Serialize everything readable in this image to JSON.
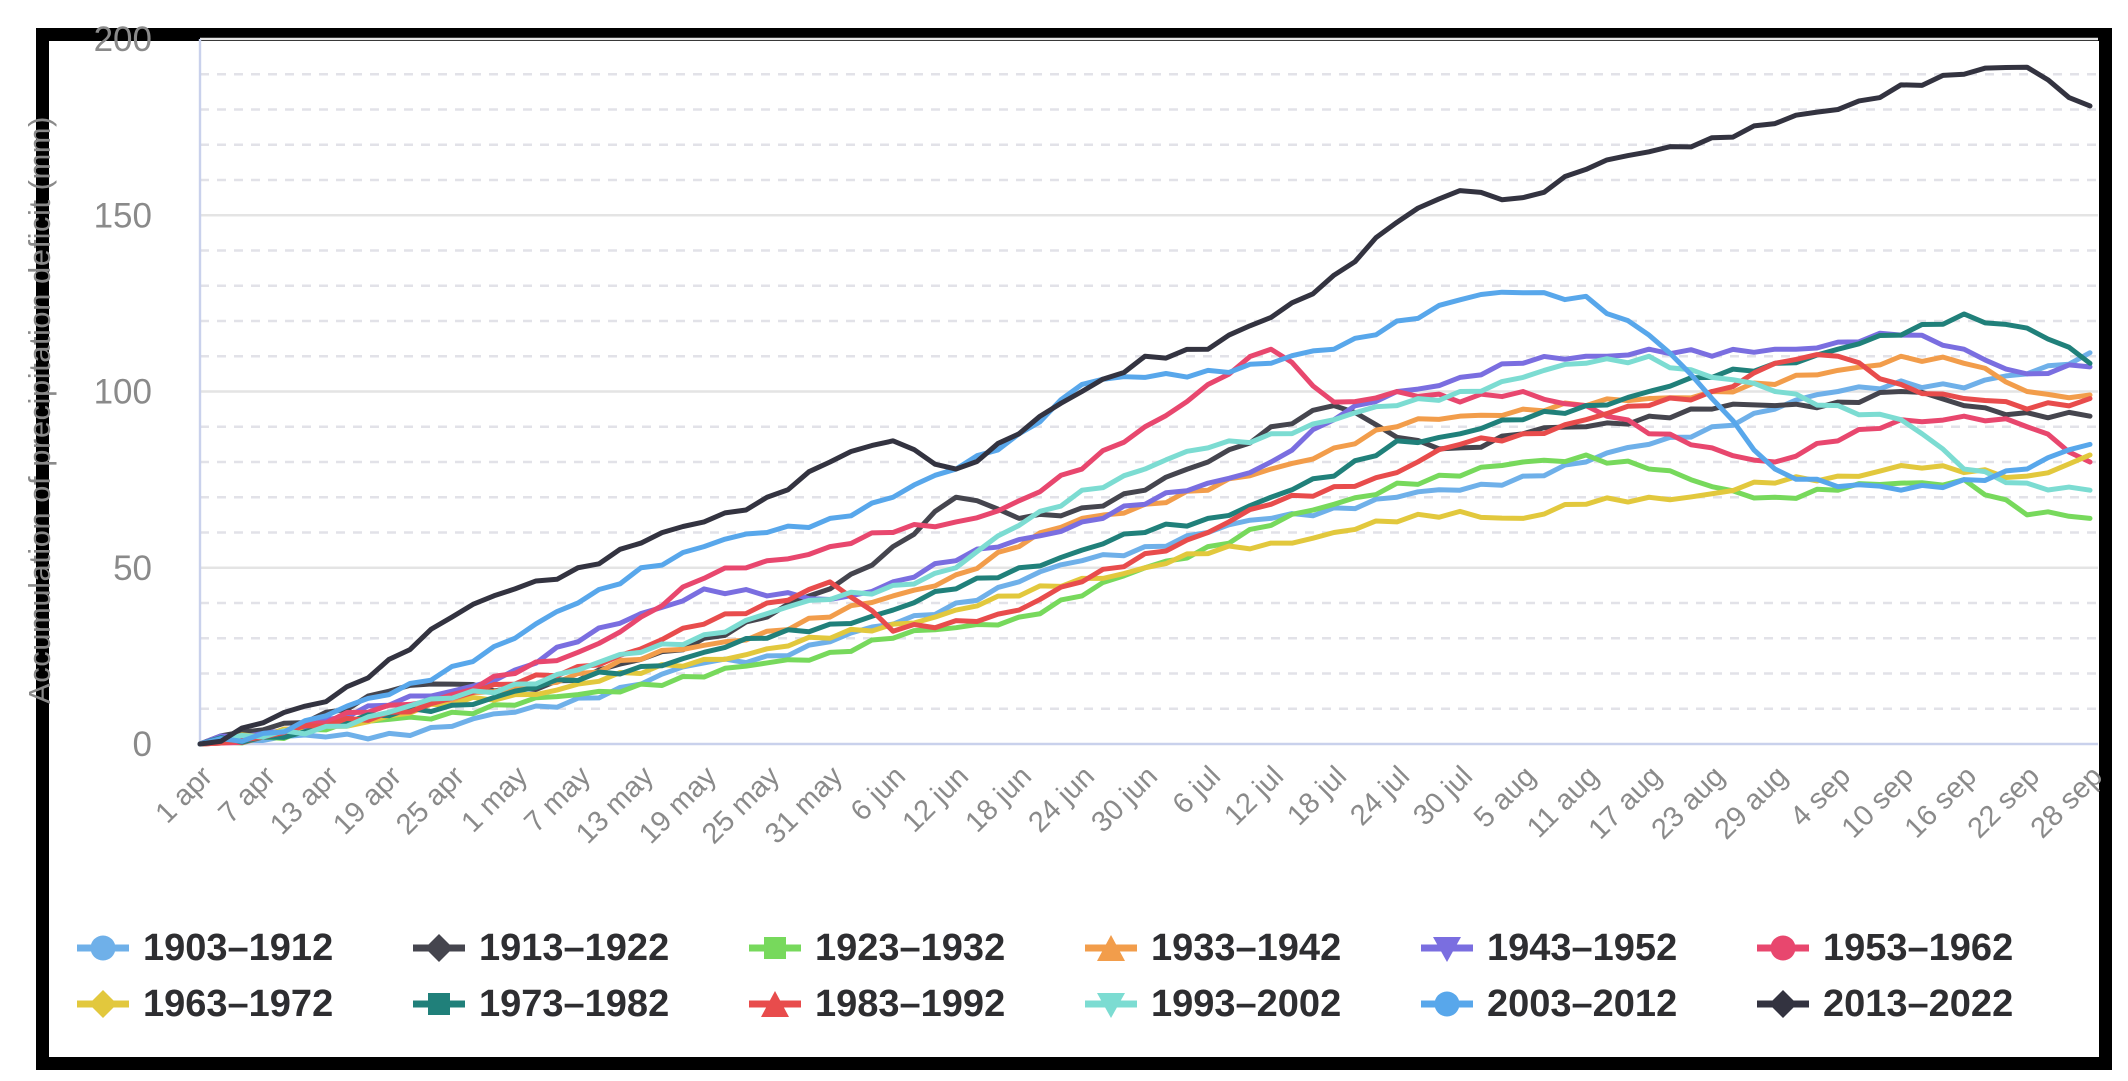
{
  "figure": {
    "background": "#ffffff",
    "border_color": "#000000"
  },
  "axis_style": {
    "tick_label_color": "#8a8a8a",
    "axis_line_color": "#c9d1ec",
    "grid_major_color": "#e4e4e4",
    "grid_minor_color": "#e2e2e8",
    "legend_text_color": "#2e2e31"
  },
  "chart_data": {
    "type": "line",
    "title": "",
    "xlabel": "",
    "ylabel": "Accumulation of precipitation deficit (mm)",
    "ylim": [
      0,
      200
    ],
    "y_ticks": [
      0,
      50,
      100,
      150,
      200
    ],
    "y_minor_step": 10,
    "grid": "major solid, minor dashed",
    "legend_position": "bottom",
    "x": [
      "1 apr",
      "7 apr",
      "13 apr",
      "19 apr",
      "25 apr",
      "1 may",
      "7 may",
      "13 may",
      "19 may",
      "25 may",
      "31 may",
      "6 jun",
      "12 jun",
      "18 jun",
      "24 jun",
      "30 jun",
      "6 jul",
      "12 jul",
      "18 jul",
      "24 jul",
      "30 jul",
      "5 aug",
      "11 aug",
      "17 aug",
      "23 aug",
      "29 aug",
      "4 sep",
      "10 sep",
      "16 sep",
      "22 sep",
      "28 sep"
    ],
    "series": [
      {
        "name": "1903–1912",
        "color": "#6fb0e9",
        "marker": "circle",
        "values": [
          0,
          1,
          2,
          3,
          5,
          9,
          13,
          17,
          23,
          25,
          29,
          34,
          40,
          46,
          52,
          56,
          60,
          64,
          67,
          70,
          72,
          76,
          80,
          85,
          90,
          95,
          100,
          103,
          101,
          105,
          111
        ]
      },
      {
        "name": "1913–1922",
        "color": "#45454e",
        "marker": "diamond",
        "values": [
          0,
          4,
          9,
          15,
          17,
          16,
          18,
          24,
          30,
          36,
          44,
          56,
          70,
          64,
          67,
          72,
          80,
          90,
          96,
          87,
          84,
          88,
          90,
          93,
          95,
          96,
          97,
          100,
          96,
          94,
          93
        ]
      },
      {
        "name": "1923–1932",
        "color": "#77d95c",
        "marker": "square",
        "values": [
          0,
          2,
          4,
          7,
          9,
          11,
          14,
          17,
          19,
          23,
          26,
          30,
          33,
          36,
          42,
          50,
          56,
          62,
          68,
          74,
          76,
          80,
          82,
          78,
          73,
          70,
          72,
          74,
          75,
          65,
          64
        ]
      },
      {
        "name": "1933–1942",
        "color": "#f29d4b",
        "marker": "triangle-up",
        "values": [
          0,
          2,
          5,
          9,
          12,
          16,
          20,
          24,
          28,
          32,
          36,
          42,
          48,
          56,
          64,
          68,
          72,
          78,
          84,
          90,
          93,
          95,
          96,
          98,
          100,
          102,
          106,
          110,
          108,
          100,
          99
        ]
      },
      {
        "name": "1943–1952",
        "color": "#7a6ee0",
        "marker": "triangle-down",
        "values": [
          0,
          3,
          7,
          11,
          15,
          21,
          29,
          37,
          44,
          42,
          41,
          46,
          52,
          58,
          63,
          68,
          74,
          80,
          92,
          100,
          104,
          108,
          110,
          112,
          110,
          112,
          114,
          116,
          112,
          105,
          107
        ]
      },
      {
        "name": "1953–1962",
        "color": "#e8476e",
        "marker": "circle",
        "values": [
          0,
          2,
          6,
          11,
          14,
          20,
          26,
          36,
          47,
          52,
          56,
          60,
          63,
          69,
          78,
          90,
          102,
          112,
          97,
          100,
          97,
          100,
          96,
          88,
          84,
          80,
          86,
          92,
          93,
          90,
          80
        ]
      },
      {
        "name": "1963–1972",
        "color": "#e2c83d",
        "marker": "diamond",
        "values": [
          0,
          2,
          5,
          8,
          11,
          14,
          17,
          20,
          24,
          27,
          30,
          34,
          38,
          42,
          47,
          50,
          54,
          57,
          60,
          63,
          66,
          64,
          68,
          70,
          71,
          74,
          76,
          79,
          77,
          76,
          82
        ]
      },
      {
        "name": "1973–1982",
        "color": "#20807a",
        "marker": "square",
        "values": [
          0,
          2,
          5,
          8,
          11,
          15,
          18,
          22,
          26,
          30,
          34,
          38,
          44,
          50,
          55,
          60,
          64,
          70,
          76,
          86,
          88,
          92,
          96,
          100,
          104,
          108,
          112,
          116,
          122,
          118,
          108
        ]
      },
      {
        "name": "1983–1992",
        "color": "#e84c4c",
        "marker": "triangle-up",
        "values": [
          0,
          2,
          5,
          9,
          13,
          17,
          22,
          27,
          34,
          40,
          46,
          32,
          35,
          38,
          46,
          54,
          60,
          68,
          73,
          77,
          85,
          88,
          92,
          96,
          100,
          108,
          110,
          102,
          98,
          95,
          98
        ]
      },
      {
        "name": "1993–2002",
        "color": "#7cdcd2",
        "marker": "triangle-down",
        "values": [
          0,
          2,
          5,
          9,
          13,
          17,
          21,
          26,
          31,
          37,
          41,
          45,
          50,
          62,
          72,
          78,
          84,
          88,
          92,
          96,
          100,
          104,
          108,
          110,
          104,
          100,
          96,
          92,
          78,
          74,
          72
        ]
      },
      {
        "name": "2003–2012",
        "color": "#58a7eb",
        "marker": "circle",
        "values": [
          0,
          3,
          8,
          14,
          22,
          30,
          40,
          50,
          56,
          60,
          64,
          70,
          78,
          88,
          102,
          104,
          106,
          108,
          112,
          120,
          126,
          128,
          127,
          116,
          98,
          78,
          73,
          72,
          75,
          78,
          85
        ]
      },
      {
        "name": "2013–2022",
        "color": "#333340",
        "marker": "diamond",
        "values": [
          0,
          6,
          12,
          24,
          36,
          44,
          50,
          57,
          63,
          70,
          80,
          86,
          78,
          88,
          100,
          110,
          112,
          121,
          133,
          148,
          157,
          155,
          163,
          168,
          172,
          176,
          180,
          187,
          190,
          192,
          181
        ]
      }
    ]
  }
}
